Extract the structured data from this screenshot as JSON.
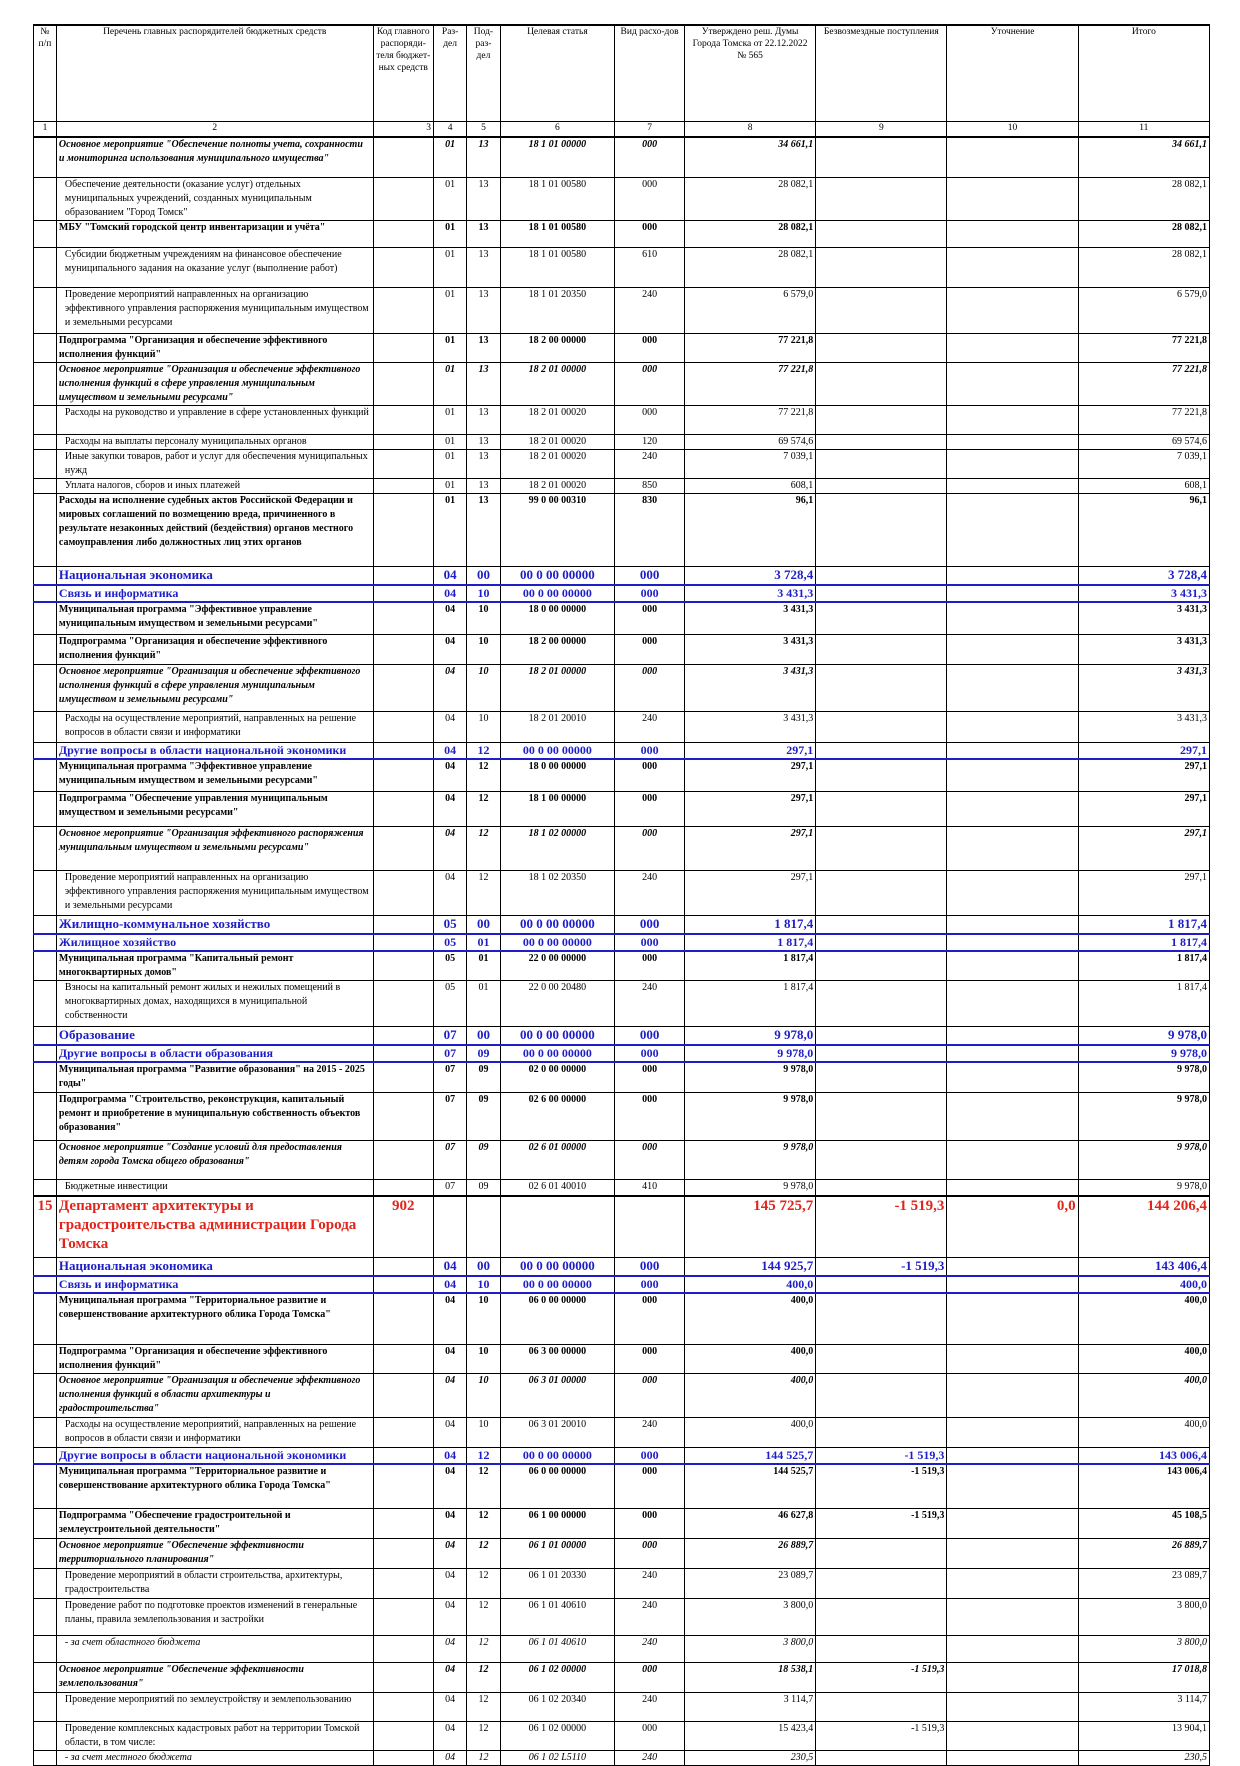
{
  "headers": [
    "№ п/п",
    "Перечень главных распорядителей бюджетных средств",
    "Код главного распоряди-теля бюджет-ных средств",
    "Раз-дел",
    "Под-раз-дел",
    "Целевая статья",
    "Вид расхо-дов",
    "Утверждено реш. Думы Города Томска от 22.12.2022 № 565",
    "Безвозмездные поступления",
    "Уточнение",
    "Итого"
  ],
  "column_numbers": [
    "1",
    "2",
    "3",
    "4",
    "5",
    "6",
    "7",
    "8",
    "9",
    "10",
    "11"
  ],
  "rows": [
    {
      "style": "bi",
      "h": 39,
      "n": "",
      "name": "Основное мероприятие \"Обеспечение полноты учета, сохранности и мониторинга использования муниципального имущества\"",
      "code": "",
      "razdel": "01",
      "podrazdel": "13",
      "target": "18 1 01 00000",
      "vid": "000",
      "approved": "34 661,1",
      "free": "",
      "clar": "",
      "total": "34 661,1"
    },
    {
      "style": "reg",
      "h": 39,
      "n": "",
      "name": "Обеспечение деятельности (оказание услуг) отдельных муниципальных учреждений, созданных муниципальным образованием \"Город Томск\"",
      "code": "",
      "razdel": "01",
      "podrazdel": "13",
      "target": "18 1 01 00580",
      "vid": "000",
      "approved": "28 082,1",
      "free": "",
      "clar": "",
      "total": "28 082,1"
    },
    {
      "style": "bold",
      "h": 26,
      "n": "",
      "name": "МБУ \"Томский городской центр инвентаризации и учёта\"",
      "code": "",
      "razdel": "01",
      "podrazdel": "13",
      "target": "18 1 01 00580",
      "vid": "000",
      "approved": "28 082,1",
      "free": "",
      "clar": "",
      "total": "28 082,1"
    },
    {
      "style": "reg",
      "h": 39,
      "n": "",
      "name": "Субсидии бюджетным учреждениям на финансовое обеспечение муниципального задания на оказание услуг (выполнение работ)",
      "code": "",
      "razdel": "01",
      "podrazdel": "13",
      "target": "18 1 01 00580",
      "vid": "610",
      "approved": "28 082,1",
      "free": "",
      "clar": "",
      "total": "28 082,1"
    },
    {
      "style": "reg",
      "h": 45,
      "n": "",
      "name": "Проведение мероприятий направленных на организацию эффективного управления распоряжения муниципальным имуществом и земельными ресурсами",
      "code": "",
      "razdel": "01",
      "podrazdel": "13",
      "target": "18 1 01 20350",
      "vid": "240",
      "approved": "6 579,0",
      "free": "",
      "clar": "",
      "total": "6 579,0"
    },
    {
      "style": "bold",
      "h": 26,
      "n": "",
      "name": "Подпрограмма \"Организация и обеспечение эффективного исполнения функций\"",
      "code": "",
      "razdel": "01",
      "podrazdel": "13",
      "target": "18 2 00 00000",
      "vid": "000",
      "approved": "77 221,8",
      "free": "",
      "clar": "",
      "total": "77 221,8"
    },
    {
      "style": "bi",
      "h": 39,
      "n": "",
      "name": "Основное мероприятие \"Организация и обеспечение эффективного исполнения функций в сфере управления муниципальным имуществом и земельными ресурсами\"",
      "code": "",
      "razdel": "01",
      "podrazdel": "13",
      "target": "18 2 01 00000",
      "vid": "000",
      "approved": "77 221,8",
      "free": "",
      "clar": "",
      "total": "77 221,8"
    },
    {
      "style": "reg",
      "h": 28,
      "n": "",
      "name": "Расходы на руководство и управление в сфере установленных функций",
      "code": "",
      "razdel": "01",
      "podrazdel": "13",
      "target": "18 2 01 00020",
      "vid": "000",
      "approved": "77 221,8",
      "free": "",
      "clar": "",
      "total": "77 221,8"
    },
    {
      "style": "reg",
      "h": 14,
      "n": "",
      "name": "Расходы на выплаты персоналу муниципальных органов",
      "code": "",
      "razdel": "01",
      "podrazdel": "13",
      "target": "18 2 01 00020",
      "vid": "120",
      "approved": "69 574,6",
      "free": "",
      "clar": "",
      "total": "69 574,6"
    },
    {
      "style": "reg",
      "h": 28,
      "n": "",
      "name": "Иные закупки товаров, работ и услуг для обеспечения муниципальных нужд",
      "code": "",
      "razdel": "01",
      "podrazdel": "13",
      "target": "18 2 01 00020",
      "vid": "240",
      "approved": "7 039,1",
      "free": "",
      "clar": "",
      "total": "7 039,1"
    },
    {
      "style": "reg",
      "h": 14,
      "n": "",
      "name": "Уплата налогов, сборов и иных платежей",
      "code": "",
      "razdel": "01",
      "podrazdel": "13",
      "target": "18 2 01 00020",
      "vid": "850",
      "approved": "608,1",
      "free": "",
      "clar": "",
      "total": "608,1"
    },
    {
      "style": "bold",
      "h": 72,
      "n": "",
      "name": "Расходы на исполнение судебных актов Российской Федерации и мировых соглашений по возмещению вреда, причиненного в результате незаконных действий (бездействия) органов местного самоуправления либо должностных лиц этих органов",
      "code": "",
      "razdel": "01",
      "podrazdel": "13",
      "target": "99 0 00 00310",
      "vid": "830",
      "approved": "96,1",
      "free": "",
      "clar": "",
      "total": "96,1"
    },
    {
      "style": "blue big",
      "h": 17,
      "n": "",
      "name": "Национальная экономика",
      "code": "",
      "razdel": "04",
      "podrazdel": "00",
      "target": "00 0 00 00000",
      "vid": "000",
      "approved": "3 728,4",
      "free": "",
      "clar": "",
      "total": "3 728,4"
    },
    {
      "style": "blue",
      "h": 15,
      "n": "",
      "name": "Связь и информатика",
      "code": "",
      "razdel": "04",
      "podrazdel": "10",
      "target": "00 0 00 00000",
      "vid": "000",
      "approved": "3 431,3",
      "free": "",
      "clar": "",
      "total": "3 431,3"
    },
    {
      "style": "bold",
      "h": 31,
      "n": "",
      "name": "Муниципальная программа \"Эффективное управление муниципальным имуществом и земельными ресурсами\"",
      "code": "",
      "razdel": "04",
      "podrazdel": "10",
      "target": "18 0 00 00000",
      "vid": "000",
      "approved": "3 431,3",
      "free": "",
      "clar": "",
      "total": "3 431,3"
    },
    {
      "style": "bold",
      "h": 29,
      "n": "",
      "name": "Подпрограмма \"Организация и обеспечение эффективного исполнения функций\"",
      "code": "",
      "razdel": "04",
      "podrazdel": "10",
      "target": "18 2 00 00000",
      "vid": "000",
      "approved": "3 431,3",
      "free": "",
      "clar": "",
      "total": "3 431,3"
    },
    {
      "style": "bi",
      "h": 46,
      "n": "",
      "name": "Основное мероприятие \"Организация и обеспечение эффективного исполнения функций в сфере управления муниципальным имуществом и земельными ресурсами\"",
      "code": "",
      "razdel": "04",
      "podrazdel": "10",
      "target": "18 2 01 00000",
      "vid": "000",
      "approved": "3 431,3",
      "free": "",
      "clar": "",
      "total": "3 431,3"
    },
    {
      "style": "reg",
      "h": 30,
      "n": "",
      "name": "Расходы на осуществление мероприятий, направленных на решение вопросов в области связи и информатики",
      "code": "",
      "razdel": "04",
      "podrazdel": "10",
      "target": "18 2 01 20010",
      "vid": "240",
      "approved": "3 431,3",
      "free": "",
      "clar": "",
      "total": "3 431,3"
    },
    {
      "style": "blue",
      "h": 15,
      "n": "",
      "name": "Другие вопросы в области национальной экономики",
      "code": "",
      "razdel": "04",
      "podrazdel": "12",
      "target": "00 0 00 00000",
      "vid": "000",
      "approved": "297,1",
      "free": "",
      "clar": "",
      "total": "297,1"
    },
    {
      "style": "bold",
      "h": 31,
      "n": "",
      "name": "Муниципальная программа \"Эффективное управление муниципальным имуществом и земельными ресурсами\"",
      "code": "",
      "razdel": "04",
      "podrazdel": "12",
      "target": "18 0 00 00000",
      "vid": "000",
      "approved": "297,1",
      "free": "",
      "clar": "",
      "total": "297,1"
    },
    {
      "style": "bold",
      "h": 34,
      "n": "",
      "name": "Подпрограмма \"Обеспечение управления муниципальным имуществом и земельными ресурсами\"",
      "code": "",
      "razdel": "04",
      "podrazdel": "12",
      "target": "18 1 00 00000",
      "vid": "000",
      "approved": "297,1",
      "free": "",
      "clar": "",
      "total": "297,1"
    },
    {
      "style": "bi",
      "h": 43,
      "n": "",
      "name": "Основное мероприятие \"Организация эффективного распоряжения муниципальным имуществом и земельными ресурсами\"",
      "code": "",
      "razdel": "04",
      "podrazdel": "12",
      "target": "18 1 02 00000",
      "vid": "000",
      "approved": "297,1",
      "free": "",
      "clar": "",
      "total": "297,1"
    },
    {
      "style": "reg",
      "h": 44,
      "n": "",
      "name": "Проведение мероприятий направленных на организацию эффективного управления распоряжения муниципальным имуществом и земельными ресурсами",
      "code": "",
      "razdel": "04",
      "podrazdel": "12",
      "target": "18 1 02 20350",
      "vid": "240",
      "approved": "297,1",
      "free": "",
      "clar": "",
      "total": "297,1"
    },
    {
      "style": "blue big",
      "h": 17,
      "n": "",
      "name": "Жилищно-коммунальное хозяйство",
      "code": "",
      "razdel": "05",
      "podrazdel": "00",
      "target": "00 0 00 00000",
      "vid": "000",
      "approved": "1 817,4",
      "free": "",
      "clar": "",
      "total": "1 817,4"
    },
    {
      "style": "blue",
      "h": 15,
      "n": "",
      "name": "Жилищное хозяйство",
      "code": "",
      "razdel": "05",
      "podrazdel": "01",
      "target": "00 0 00 00000",
      "vid": "000",
      "approved": "1 817,4",
      "free": "",
      "clar": "",
      "total": "1 817,4"
    },
    {
      "style": "bold",
      "h": 28,
      "n": "",
      "name": "Муниципальная программа \"Капитальный ремонт многоквартирных домов\"",
      "code": "",
      "razdel": "05",
      "podrazdel": "01",
      "target": "22 0 00 00000",
      "vid": "000",
      "approved": "1 817,4",
      "free": "",
      "clar": "",
      "total": "1 817,4"
    },
    {
      "style": "reg",
      "h": 45,
      "n": "",
      "name": "Взносы на капитальный ремонт жилых и нежилых помещений в многоквартирных домах, находящихся в муниципальной собственности",
      "code": "",
      "razdel": "05",
      "podrazdel": "01",
      "target": "22 0 00 20480",
      "vid": "240",
      "approved": "1 817,4",
      "free": "",
      "clar": "",
      "total": "1 817,4"
    },
    {
      "style": "blue big",
      "h": 17,
      "n": "",
      "name": "Образование",
      "code": "",
      "razdel": "07",
      "podrazdel": "00",
      "target": "00 0 00 00000",
      "vid": "000",
      "approved": "9 978,0",
      "free": "",
      "clar": "",
      "total": "9 978,0"
    },
    {
      "style": "blue",
      "h": 15,
      "n": "",
      "name": "Другие вопросы в области образования",
      "code": "",
      "razdel": "07",
      "podrazdel": "09",
      "target": "00 0 00 00000",
      "vid": "000",
      "approved": "9 978,0",
      "free": "",
      "clar": "",
      "total": "9 978,0"
    },
    {
      "style": "bold",
      "h": 29,
      "n": "",
      "name": "Муниципальная программа \"Развитие образования\" на 2015 - 2025 годы\"",
      "code": "",
      "razdel": "07",
      "podrazdel": "09",
      "target": "02 0 00 00000",
      "vid": "000",
      "approved": "9 978,0",
      "free": "",
      "clar": "",
      "total": "9 978,0"
    },
    {
      "style": "bold",
      "h": 47,
      "n": "",
      "name": "Подпрограмма \"Строительство, реконструкция, капитальный ремонт и приобретение в муниципальную собственность объектов образования\"",
      "code": "",
      "razdel": "07",
      "podrazdel": "09",
      "target": "02 6 00 00000",
      "vid": "000",
      "approved": "9 978,0",
      "free": "",
      "clar": "",
      "total": "9 978,0"
    },
    {
      "style": "bi",
      "h": 38,
      "n": "",
      "name": "Основное мероприятие \"Создание условий для предоставления детям города Томска общего образования\"",
      "code": "",
      "razdel": "07",
      "podrazdel": "09",
      "target": "02 6 01 00000",
      "vid": "000",
      "approved": "9 978,0",
      "free": "",
      "clar": "",
      "total": "9 978,0"
    },
    {
      "style": "reg",
      "h": 15,
      "n": "",
      "name": "Бюджетные инвестиции",
      "code": "",
      "razdel": "07",
      "podrazdel": "09",
      "target": "02 6 01 40010",
      "vid": "410",
      "approved": "9 978,0",
      "free": "",
      "clar": "",
      "total": "9 978,0"
    },
    {
      "style": "dept",
      "h": 60,
      "n": "15",
      "name": "Департамент архитектуры и градостроительства администрации Города Томска",
      "code": "902",
      "razdel": "",
      "podrazdel": "",
      "target": "",
      "vid": "",
      "approved": "145 725,7",
      "free": "-1 519,3",
      "clar": "0,0",
      "total": "144 206,4"
    },
    {
      "style": "blue big",
      "h": 17,
      "n": "",
      "name": "Национальная экономика",
      "code": "",
      "razdel": "04",
      "podrazdel": "00",
      "target": "00 0 00 00000",
      "vid": "000",
      "approved": "144 925,7",
      "free": "-1 519,3",
      "clar": "",
      "total": "143 406,4"
    },
    {
      "style": "blue",
      "h": 15,
      "n": "",
      "name": "Связь и информатика",
      "code": "",
      "razdel": "04",
      "podrazdel": "10",
      "target": "00 0 00 00000",
      "vid": "000",
      "approved": "400,0",
      "free": "",
      "clar": "",
      "total": "400,0"
    },
    {
      "style": "bold",
      "h": 50,
      "n": "",
      "name": "Муниципальная программа \"Территориальное развитие и совершенствование архитектурного облика Города Томска\"",
      "code": "",
      "razdel": "04",
      "podrazdel": "10",
      "target": "06 0 00 00000",
      "vid": "000",
      "approved": "400,0",
      "free": "",
      "clar": "",
      "total": "400,0"
    },
    {
      "style": "bold",
      "h": 28,
      "n": "",
      "name": "Подпрограмма \"Организация и обеспечение эффективного исполнения функций\"",
      "code": "",
      "razdel": "04",
      "podrazdel": "10",
      "target": "06 3 00 00000",
      "vid": "000",
      "approved": "400,0",
      "free": "",
      "clar": "",
      "total": "400,0"
    },
    {
      "style": "bi",
      "h": 43,
      "n": "",
      "name": "Основное мероприятие \"Организация и обеспечение эффективного исполнения функций в области архитектуры и градостроительства\"",
      "code": "",
      "razdel": "04",
      "podrazdel": "10",
      "target": "06 3 01 00000",
      "vid": "000",
      "approved": "400,0",
      "free": "",
      "clar": "",
      "total": "400,0"
    },
    {
      "style": "reg",
      "h": 29,
      "n": "",
      "name": "Расходы на осуществление мероприятий, направленных на решение вопросов в области связи и информатики",
      "code": "",
      "razdel": "04",
      "podrazdel": "10",
      "target": "06 3 01 20010",
      "vid": "240",
      "approved": "400,0",
      "free": "",
      "clar": "",
      "total": "400,0"
    },
    {
      "style": "blue",
      "h": 15,
      "n": "",
      "name": "Другие вопросы в области национальной экономики",
      "code": "",
      "razdel": "04",
      "podrazdel": "12",
      "target": "00 0 00 00000",
      "vid": "000",
      "approved": "144 525,7",
      "free": "-1 519,3",
      "clar": "",
      "total": "143 006,4"
    },
    {
      "style": "bold",
      "h": 43,
      "n": "",
      "name": "Муниципальная программа \"Территориальное развитие и совершенствование архитектурного облика Города Томска\"",
      "code": "",
      "razdel": "04",
      "podrazdel": "12",
      "target": "06 0 00 00000",
      "vid": "000",
      "approved": "144 525,7",
      "free": "-1 519,3",
      "clar": "",
      "total": "143 006,4"
    },
    {
      "style": "bold",
      "h": 29,
      "n": "",
      "name": "Подпрограмма \"Обеспечение градостроительной и землеустроительной деятельности\"",
      "code": "",
      "razdel": "04",
      "podrazdel": "12",
      "target": "06 1 00 00000",
      "vid": "000",
      "approved": "46 627,8",
      "free": "-1 519,3",
      "clar": "",
      "total": "45 108,5"
    },
    {
      "style": "bi",
      "h": 29,
      "n": "",
      "name": "Основное мероприятие \"Обеспечение эффективности территориального планирования\"",
      "code": "",
      "razdel": "04",
      "podrazdel": "12",
      "target": "06 1 01 00000",
      "vid": "000",
      "approved": "26 889,7",
      "free": "",
      "clar": "",
      "total": "26 889,7"
    },
    {
      "style": "reg",
      "h": 29,
      "n": "",
      "name": "Проведение мероприятий в области строительства, архитектуры, градостроительства",
      "code": "",
      "razdel": "04",
      "podrazdel": "12",
      "target": "06 1 01 20330",
      "vid": "240",
      "approved": "23 089,7",
      "free": "",
      "clar": "",
      "total": "23 089,7"
    },
    {
      "style": "reg",
      "h": 36,
      "n": "",
      "name": "Проведение работ по подготовке проектов изменений в генеральные планы, правила землепользования и застройки",
      "code": "",
      "razdel": "04",
      "podrazdel": "12",
      "target": "06 1 01 40610",
      "vid": "240",
      "approved": "3 800,0",
      "free": "",
      "clar": "",
      "total": "3 800,0"
    },
    {
      "style": "it",
      "h": 26,
      "n": "",
      "name": "- за счет областного бюджета",
      "code": "",
      "razdel": "04",
      "podrazdel": "12",
      "target": "06 1 01 40610",
      "vid": "240",
      "approved": "3 800,0",
      "free": "",
      "clar": "",
      "total": "3 800,0"
    },
    {
      "style": "bi",
      "h": 29,
      "n": "",
      "name": "Основное мероприятие \"Обеспечение эффективности землепользования\"",
      "code": "",
      "razdel": "04",
      "podrazdel": "12",
      "target": "06 1 02 00000",
      "vid": "000",
      "approved": "18 538,1",
      "free": "-1 519,3",
      "clar": "",
      "total": "17 018,8"
    },
    {
      "style": "reg",
      "h": 28,
      "n": "",
      "name": "Проведение мероприятий по землеустройству и землепользованию",
      "code": "",
      "razdel": "04",
      "podrazdel": "12",
      "target": "06 1 02 20340",
      "vid": "240",
      "approved": "3 114,7",
      "free": "",
      "clar": "",
      "total": "3 114,7"
    },
    {
      "style": "reg",
      "h": 28,
      "n": "",
      "name": "Проведение комплексных кадастровых работ на территории Томской области, в том числе:",
      "code": "",
      "razdel": "04",
      "podrazdel": "12",
      "target": "06 1 02 00000",
      "vid": "000",
      "approved": "15 423,4",
      "free": "-1 519,3",
      "clar": "",
      "total": "13 904,1"
    },
    {
      "style": "it",
      "h": 14,
      "n": "",
      "name": "- за счет местного бюджета",
      "code": "",
      "razdel": "04",
      "podrazdel": "12",
      "target": "06 1 02 L5110",
      "vid": "240",
      "approved": "230,5",
      "free": "",
      "clar": "",
      "total": "230,5"
    }
  ]
}
